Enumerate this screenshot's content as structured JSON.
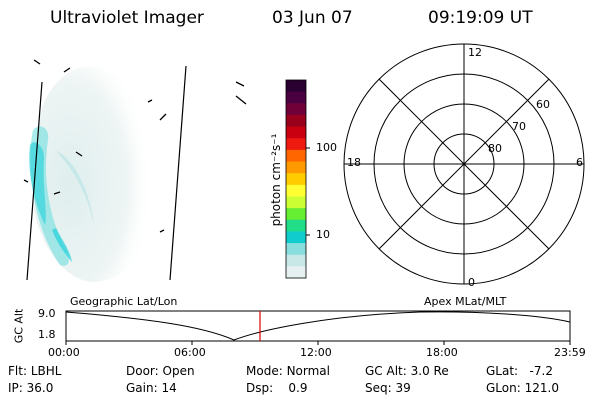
{
  "header": {
    "instrument": "Ultraviolet Imager",
    "date": "03 Jun 07",
    "time": "09:19:09 UT"
  },
  "colorbar": {
    "label": "photon cm⁻²s⁻¹",
    "ticks": [
      "100",
      "10"
    ],
    "colors": [
      "#2a0030",
      "#4a0040",
      "#700038",
      "#98001c",
      "#c80010",
      "#ee1a10",
      "#ff6600",
      "#ff9900",
      "#ffcc00",
      "#ffff33",
      "#ccff33",
      "#66ee33",
      "#22dd88",
      "#11cccc",
      "#88dddd",
      "#c8e8e8",
      "#e6f0f0"
    ]
  },
  "polar_plot": {
    "mlt_labels": {
      "top": "12",
      "left": "18",
      "right": "6",
      "bottom": "0"
    },
    "lat_labels": [
      "60",
      "70",
      "80"
    ]
  },
  "timeline": {
    "left_title": "Geographic Lat/Lon",
    "right_title": "Apex  MLat/MLT",
    "y_label": "GC Alt",
    "y_ticks": [
      "9.0",
      "1.8"
    ],
    "x_ticks": [
      "00:00",
      "06:00",
      "12:00",
      "18:00",
      "23:59"
    ],
    "current_time": "09:19:09",
    "marker_color": "#dd0000"
  },
  "info_row1": [
    {
      "label": "Flt:",
      "value": "LBHL"
    },
    {
      "label": "Door:",
      "value": "Open"
    },
    {
      "label": "Mode:",
      "value": "Normal"
    },
    {
      "label": "GC Alt:",
      "value": "3.0 Re"
    },
    {
      "label": "GLat:",
      "value": "-7.2"
    }
  ],
  "info_row2": [
    {
      "label": "IP:",
      "value": "36.0"
    },
    {
      "label": "Gain:",
      "value": "14"
    },
    {
      "label": "Dsp:",
      "value": "0.9"
    },
    {
      "label": "Seq:",
      "value": "39"
    },
    {
      "label": "GLon:",
      "value": "121.0"
    }
  ]
}
